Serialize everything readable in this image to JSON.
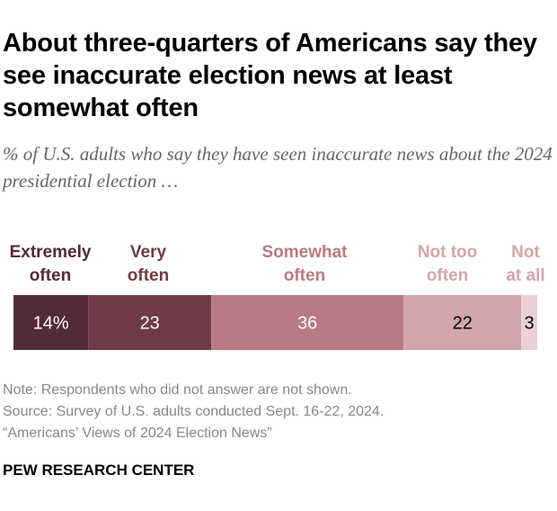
{
  "title": "About three-quarters of Americans say they see inaccurate election news at least somewhat often",
  "subtitle": "% of U.S. adults who say they have seen inaccurate news about the 2024 presidential election …",
  "chart_data": {
    "type": "bar",
    "orientation": "horizontal-stacked",
    "categories": [
      "Extremely often",
      "Very often",
      "Somewhat often",
      "Not too often",
      "Not at all"
    ],
    "values": [
      14,
      23,
      36,
      22,
      3
    ],
    "data_labels": [
      "14%",
      "23",
      "36",
      "22",
      "3"
    ],
    "colors": [
      "#532b36",
      "#6f3b47",
      "#b87a83",
      "#d3a5ac",
      "#ead0d4"
    ],
    "label_colors": [
      "#532b36",
      "#6f3b47",
      "#b87a83",
      "#d3a5ac",
      "#d3a5ac"
    ],
    "value_text_colors": [
      "#ffffff",
      "#ffffff",
      "#ffffff",
      "#000000",
      "#000000"
    ],
    "category_lines": [
      [
        "Extremely",
        "often"
      ],
      [
        "Very",
        "often"
      ],
      [
        "Somewhat",
        "often"
      ],
      [
        "Not too",
        "often"
      ],
      [
        "Not",
        "at all"
      ]
    ]
  },
  "notes": {
    "note": "Note: Respondents who did not answer are not shown.",
    "source": "Source: Survey of U.S. adults conducted Sept. 16-22, 2024.",
    "report": "“Americans’ Views of 2024 Election News”"
  },
  "brand": "PEW RESEARCH CENTER"
}
